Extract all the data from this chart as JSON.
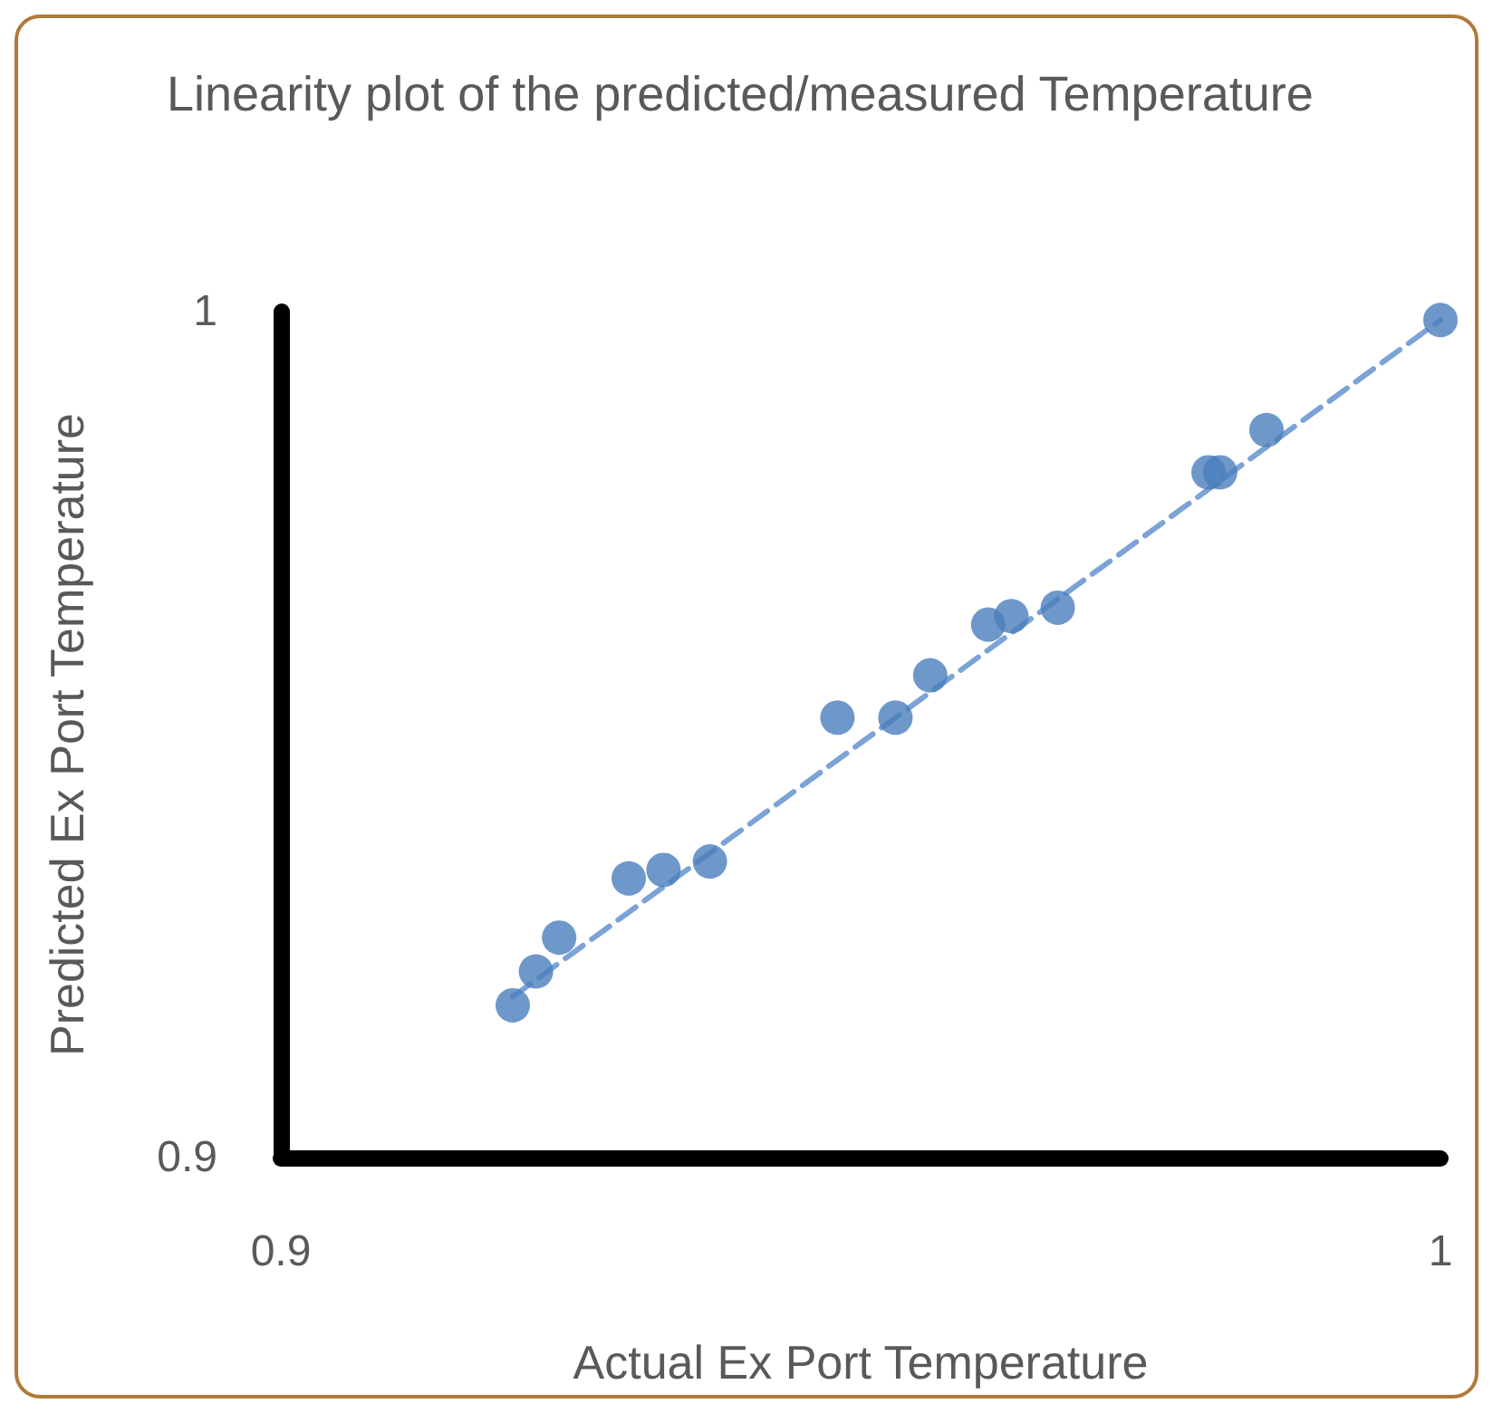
{
  "chart_data": {
    "type": "scatter",
    "title": "Linearity plot of the predicted/measured Temperature",
    "xlabel": "Actual Ex Port Temperature",
    "ylabel": "Predicted Ex Port Temperature",
    "xlim": [
      0.9,
      1
    ],
    "ylim": [
      0.9,
      1
    ],
    "xticks": [
      0.9,
      1
    ],
    "yticks": [
      0.9,
      1
    ],
    "grid": false,
    "marker": "circle",
    "series": [
      {
        "color": "#4a7ebb",
        "x": [
          0.92,
          0.922,
          0.924,
          0.93,
          0.933,
          0.937,
          0.948,
          0.953,
          0.956,
          0.961,
          0.963,
          0.967,
          0.98,
          0.981,
          0.985,
          1.0
        ],
        "values": [
          0.918,
          0.922,
          0.926,
          0.933,
          0.934,
          0.935,
          0.952,
          0.952,
          0.957,
          0.963,
          0.964,
          0.965,
          0.981,
          0.981,
          0.986,
          0.999
        ]
      },
      {
        "type": "line",
        "color": "#7ba3d6",
        "line_style": "dashed",
        "marker": "none",
        "x": [
          0.92,
          1.0
        ],
        "values": [
          0.919,
          0.999
        ]
      }
    ]
  }
}
